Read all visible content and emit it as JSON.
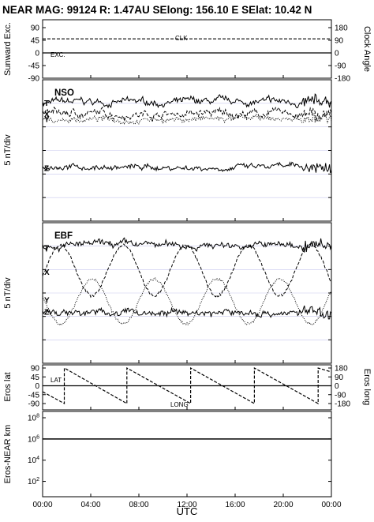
{
  "header": {
    "title": "NEAR MAG: 99124  R: 1.47AU  SElong:  156.10 E  SElat:   10.42 N"
  },
  "x_axis": {
    "ticks": [
      "00:00",
      "04:00",
      "08:00",
      "12:00",
      "16:00",
      "20:00",
      "00:00"
    ],
    "label": "UTC"
  },
  "panels": {
    "p1": {
      "ylabel_left": "Sunward Exc.",
      "ylabel_right": "Clock Angle",
      "left_ticks": [
        "90",
        "45",
        "0",
        "-45",
        "-90"
      ],
      "right_ticks": [
        "180",
        "90",
        "0",
        "-90",
        "-180"
      ],
      "labels": {
        "clk": "CLK",
        "exc": "EXC."
      }
    },
    "p2": {
      "title": "NSO",
      "ylabel": "5 nT/div",
      "traces": [
        "T",
        "X",
        "Y",
        "Z"
      ]
    },
    "p3": {
      "title": "EBF",
      "ylabel": "5 nT/div",
      "traces": [
        "T",
        "X",
        "Y",
        "Z"
      ]
    },
    "p4": {
      "ylabel_left": "Eros lat",
      "ylabel_right": "Eros long",
      "left_ticks": [
        "90",
        "45",
        "0",
        "-45",
        "-90"
      ],
      "right_ticks": [
        "180",
        "90",
        "0",
        "-90",
        "-180"
      ],
      "labels": {
        "lat": "LAT",
        "long": "LONG"
      }
    },
    "p5": {
      "ylabel": "Eros-NEAR km",
      "ticks": [
        "10^8",
        "10^6",
        "10^4",
        "10^2"
      ]
    }
  },
  "chart_data": [
    {
      "type": "line",
      "panel": "Sunward Exc. / Clock Angle",
      "x_unit": "hours UTC",
      "xlim": [
        0,
        24
      ],
      "ylim": [
        -90,
        90
      ],
      "series": [
        {
          "name": "CLK",
          "axis": "right",
          "style": "dashed",
          "x": [
            0,
            24
          ],
          "y": [
            100,
            100
          ]
        },
        {
          "name": "EXC.",
          "axis": "left",
          "style": "solid",
          "x": [
            0,
            24
          ],
          "y": [
            0,
            0
          ]
        }
      ]
    },
    {
      "type": "line",
      "panel": "NSO",
      "y_unit": "nT (5 nT/div, offsets per trace)",
      "xlim": [
        0,
        24
      ],
      "series": [
        {
          "name": "T",
          "style": "solid",
          "base": 84,
          "noise": 3.0
        },
        {
          "name": "X",
          "style": "dashed",
          "base": 76,
          "noise": 3.5
        },
        {
          "name": "Y",
          "style": "dotted",
          "base": 72,
          "noise": 2.5
        },
        {
          "name": "Z",
          "style": "solid",
          "base": 38,
          "noise": 2.5
        }
      ]
    },
    {
      "type": "line",
      "panel": "EBF",
      "y_unit": "nT (5 nT/div, offsets per trace)",
      "xlim": [
        0,
        24
      ],
      "series": [
        {
          "name": "T",
          "style": "solid",
          "base": 84,
          "noise": 3.0
        },
        {
          "name": "X",
          "style": "dashed",
          "base": 66,
          "amplitude": 18,
          "period_h": 5.2,
          "phase_h": 0.2
        },
        {
          "name": "Y",
          "style": "dotted",
          "base": 44,
          "amplitude": 16,
          "period_h": 5.2,
          "phase_h": 2.8
        },
        {
          "name": "Z",
          "style": "solid",
          "base": 36,
          "noise": 3.0
        }
      ]
    },
    {
      "type": "line",
      "panel": "Eros lat / Eros long",
      "xlim": [
        0,
        24
      ],
      "ylim": [
        -90,
        90
      ],
      "series": [
        {
          "name": "LAT",
          "axis": "left",
          "style": "solid",
          "x": [
            0,
            24
          ],
          "y": [
            0,
            0
          ]
        },
        {
          "name": "LONG",
          "axis": "right",
          "style": "dashed",
          "x": [
            0.0,
            1.8,
            1.8,
            7.0,
            7.0,
            12.3,
            12.3,
            17.6,
            17.6,
            22.9,
            22.9,
            24.0
          ],
          "y": [
            -60,
            -180,
            180,
            -180,
            180,
            -180,
            180,
            -180,
            180,
            -180,
            180,
            140
          ]
        }
      ]
    },
    {
      "type": "line",
      "panel": "Eros-NEAR km",
      "scale": "log",
      "xlim": [
        0,
        24
      ],
      "ylim": [
        10,
        100000000
      ],
      "series": [
        {
          "name": "",
          "style": "solid",
          "x": [
            0,
            24
          ],
          "y": [
            1000000,
            1000000
          ]
        }
      ]
    }
  ]
}
